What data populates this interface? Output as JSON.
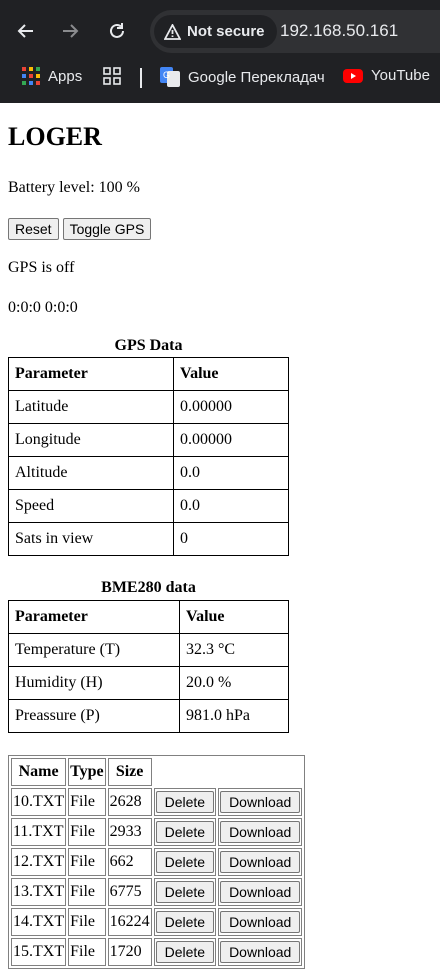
{
  "browser": {
    "security_label": "Not secure",
    "url": "192.168.50.161",
    "bookmarks": [
      {
        "label": "Apps"
      },
      {
        "label": "Google Перекладач"
      },
      {
        "label": "YouTube"
      }
    ]
  },
  "page": {
    "title": "LOGER",
    "battery": "Battery level: 100 %",
    "reset_label": "Reset",
    "toggle_gps_label": "Toggle GPS",
    "gps_status": "GPS is off",
    "time": "0:0:0 0:0:0"
  },
  "gps_table": {
    "caption": "GPS Data",
    "headers": [
      "Parameter",
      "Value"
    ],
    "rows": [
      [
        "Latitude",
        "0.00000"
      ],
      [
        "Longitude",
        "0.00000"
      ],
      [
        "Altitude",
        "0.0"
      ],
      [
        "Speed",
        "0.0"
      ],
      [
        "Sats in view",
        "0"
      ]
    ]
  },
  "bme_table": {
    "caption": "BME280 data",
    "headers": [
      "Parameter",
      "Value"
    ],
    "rows": [
      [
        "Temperature (T)",
        "32.3 °C"
      ],
      [
        "Humidity (H)",
        "20.0 %"
      ],
      [
        "Preassure (P)",
        "981.0 hPa"
      ]
    ]
  },
  "files_table": {
    "headers": [
      "Name",
      "Type",
      "Size"
    ],
    "delete_label": "Delete",
    "download_label": "Download",
    "rows": [
      [
        "10.TXT",
        "File",
        "2628"
      ],
      [
        "11.TXT",
        "File",
        "2933"
      ],
      [
        "12.TXT",
        "File",
        "662"
      ],
      [
        "13.TXT",
        "File",
        "6775"
      ],
      [
        "14.TXT",
        "File",
        "16224"
      ],
      [
        "15.TXT",
        "File",
        "1720"
      ]
    ]
  }
}
